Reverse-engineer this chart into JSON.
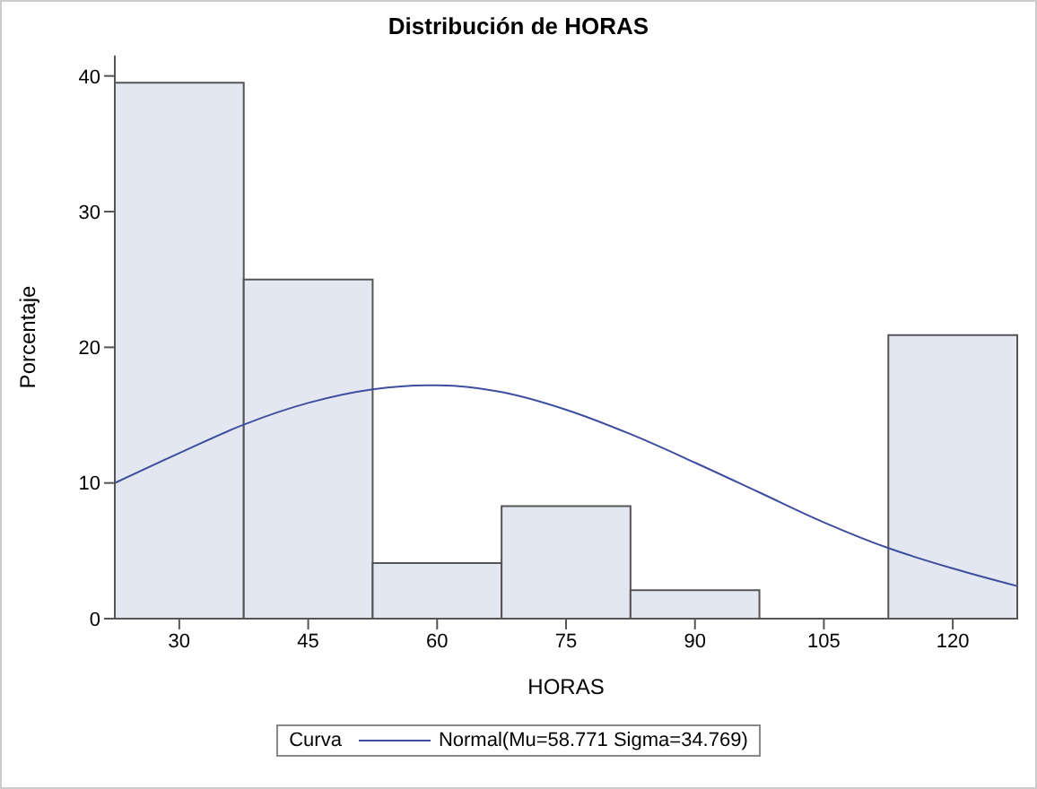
{
  "chart_data": {
    "type": "histogram",
    "title": "Distribución de HORAS",
    "xlabel": "HORAS",
    "ylabel": "Porcentaje",
    "bins": [
      22.5,
      37.5,
      52.5,
      67.5,
      82.5,
      97.5,
      112.5,
      127.5
    ],
    "values": [
      39.5,
      25,
      4.1,
      8.3,
      2.1,
      0,
      20.9
    ],
    "color": "#e3e7f1",
    "series": [
      {
        "type": "line",
        "name": "Normal(Mu=58.771 Sigma=34.769)",
        "color": "#3d4e9e",
        "x": [
          22.5,
          30,
          37.5,
          45,
          52.5,
          58.771,
          60,
          67.5,
          75,
          82.5,
          90,
          97.5,
          105,
          112.5,
          120,
          127.5
        ],
        "values": [
          10,
          12.2,
          14.3,
          15.9,
          16.9,
          17.2,
          17.2,
          16.7,
          15.4,
          13.6,
          11.5,
          9.3,
          7.1,
          5.2,
          3.7,
          2.4
        ]
      }
    ],
    "legend_title": "Curva",
    "legend": "bottom",
    "marker": "none",
    "line_style": "solid",
    "grid": false,
    "xlim": [
      22.5,
      127.5
    ],
    "xticks": [
      30,
      45,
      60,
      75,
      90,
      105,
      120
    ],
    "ylim": [
      0,
      41.5
    ],
    "yticks": [
      0,
      10,
      20,
      30,
      40
    ]
  }
}
